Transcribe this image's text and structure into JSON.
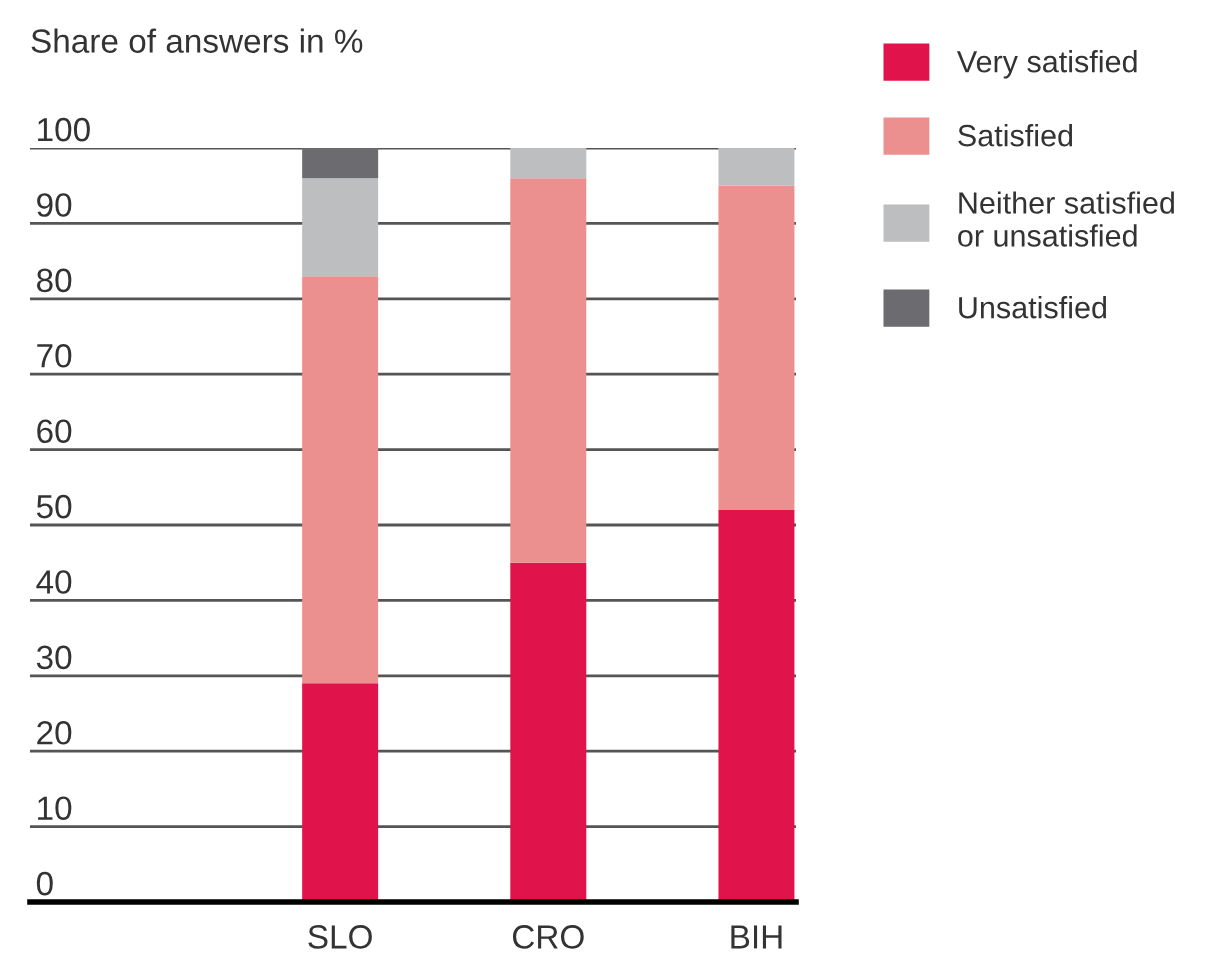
{
  "chart_data": {
    "type": "bar",
    "stacked": true,
    "ylabel": "Share of answers in %",
    "categories": [
      "SLO",
      "CRO",
      "BIH"
    ],
    "series": [
      {
        "name": "Very satisfied",
        "color": "#e0134b",
        "values": [
          29,
          45,
          52
        ]
      },
      {
        "name": "Satisfied",
        "color": "#eb8f8f",
        "values": [
          54,
          51,
          43
        ]
      },
      {
        "name": "Neither satisfied\nor unsatisfied",
        "color": "#bdbec0",
        "values": [
          13,
          4,
          5
        ]
      },
      {
        "name": "Unsatisfied",
        "color": "#6b6b70",
        "values": [
          4,
          0,
          0
        ]
      }
    ],
    "ylim": [
      0,
      100
    ],
    "yticks": [
      0,
      10,
      20,
      30,
      40,
      50,
      60,
      70,
      80,
      90,
      100
    ],
    "grid": "y",
    "legend": "top right"
  }
}
